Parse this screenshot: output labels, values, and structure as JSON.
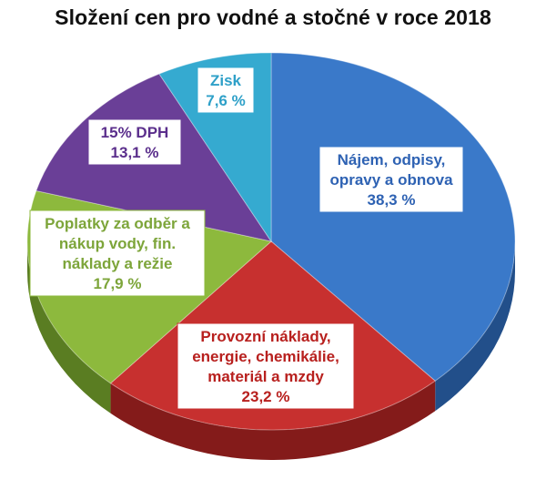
{
  "chart_data": {
    "type": "pie",
    "title": "Složení cen pro vodné a stočné v roce 2018",
    "slices": [
      {
        "label_lines": [
          "Nájem, odpisy,",
          "opravy a obnova"
        ],
        "value": 38.3,
        "value_label": "38,3 %",
        "color": "#3a79c9",
        "side_color": "#224f8a",
        "text_color": "#2e62b3"
      },
      {
        "label_lines": [
          "Provozní náklady,",
          "energie, chemikálie,",
          "materiál a mzdy"
        ],
        "value": 23.2,
        "value_label": "23,2 %",
        "color": "#c7302f",
        "side_color": "#841b1a",
        "text_color": "#b8201e"
      },
      {
        "label_lines": [
          "Poplatky za odběr a",
          "nákup vody, fin.",
          "náklady a režie"
        ],
        "value": 17.9,
        "value_label": "17,9 %",
        "color": "#8db93d",
        "side_color": "#5a7d22",
        "text_color": "#7da53a"
      },
      {
        "label_lines": [
          "15% DPH"
        ],
        "value": 13.1,
        "value_label": "13,1 %",
        "color": "#6a3f97",
        "side_color": "#432565",
        "text_color": "#5b2f8c"
      },
      {
        "label_lines": [
          "Zisk"
        ],
        "value": 7.6,
        "value_label": "7,6 %",
        "color": "#35aad0",
        "side_color": "#1f7592",
        "text_color": "#2ea0c8"
      }
    ],
    "legend": "none"
  }
}
